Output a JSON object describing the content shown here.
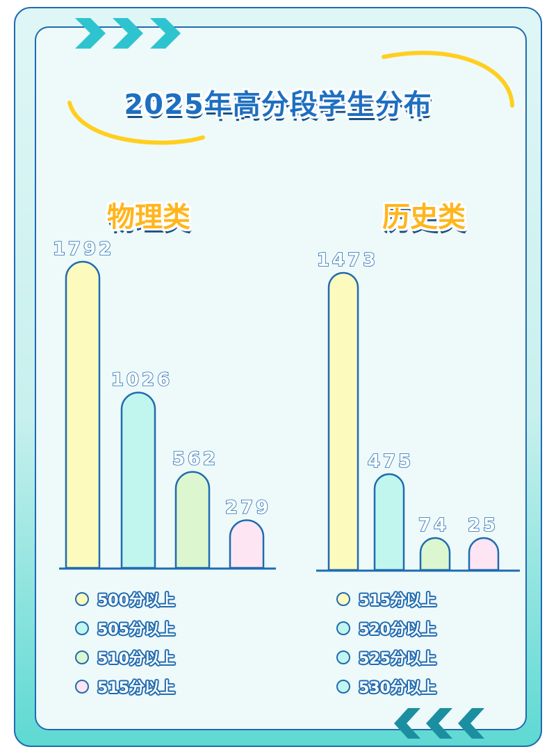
{
  "title": "2025年高分段学生分布",
  "colors": {
    "outline": "#1f6bb0",
    "title_text": "#1d6fc2",
    "panel_title": "#ffb51c",
    "arc": "#ffcf1f",
    "chevron": "#2ec4cf",
    "bar_yellow": "#fdfabd",
    "bar_teal": "#c0f6ee",
    "bar_green": "#dcf7cf",
    "bar_pink": "#fde5f3"
  },
  "chart_data": [
    {
      "type": "bar",
      "title": "物理类",
      "categories": [
        "500分以上",
        "505分以上",
        "510分以上",
        "515分以上"
      ],
      "values": [
        1792,
        1026,
        562,
        279
      ],
      "bar_colors": [
        "#fdfabd",
        "#c0f6ee",
        "#dcf7cf",
        "#fde5f3"
      ],
      "legend": [
        "500分以上",
        "505分以上",
        "510分以上",
        "515分以上"
      ],
      "legend_colors": [
        "#fdfabd",
        "#c0f6ee",
        "#dcf7cf",
        "#fde5f3"
      ],
      "grid": false,
      "legend_position": "bottom"
    },
    {
      "type": "bar",
      "title": "历史类",
      "categories": [
        "515分以上",
        "520分以上",
        "525分以上",
        "530分以上"
      ],
      "values": [
        1473,
        475,
        74,
        25
      ],
      "bar_colors": [
        "#fdfabd",
        "#c0f6ee",
        "#dcf7cf",
        "#fde5f3"
      ],
      "legend": [
        "515分以上",
        "520分以上",
        "525分以上",
        "530分以上"
      ],
      "legend_colors": [
        "#fdfabd",
        "#c0f6ee",
        "#c0f6ee",
        "#c0f6ee"
      ],
      "grid": false,
      "legend_position": "bottom"
    }
  ]
}
